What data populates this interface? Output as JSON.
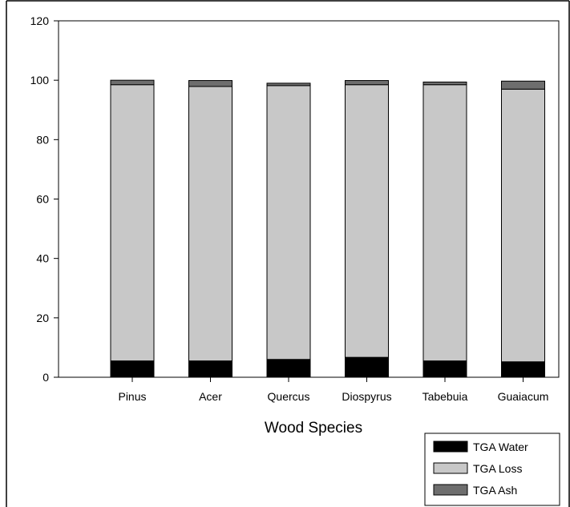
{
  "chart_data": {
    "type": "bar",
    "stacked": true,
    "title": "",
    "xlabel": "Wood Species",
    "ylabel": "",
    "ylim": [
      0,
      120
    ],
    "yticks": [
      0,
      20,
      40,
      60,
      80,
      100,
      120
    ],
    "grid": false,
    "legend_position": "bottom-right",
    "categories": [
      "Pinus",
      "Acer",
      "Quercus",
      "Diospyrus",
      "Tabebuia",
      "Guaiacum"
    ],
    "series": [
      {
        "name": "TGA Water",
        "color": "#000000",
        "values": [
          5.5,
          5.5,
          6.0,
          6.7,
          5.5,
          5.2
        ]
      },
      {
        "name": "TGA Loss",
        "color": "#c8c8c8",
        "values": [
          93.0,
          92.4,
          92.2,
          91.8,
          93.0,
          91.8
        ]
      },
      {
        "name": "TGA Ash",
        "color": "#6e6e6e",
        "values": [
          1.5,
          2.0,
          0.8,
          1.4,
          0.9,
          2.7
        ]
      }
    ]
  }
}
